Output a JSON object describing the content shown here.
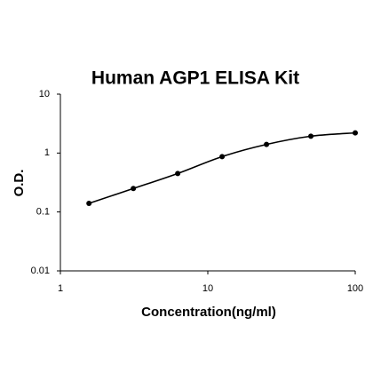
{
  "chart_data": {
    "type": "scatter",
    "title": "Human AGP1 ELISA Kit",
    "x_label": "Concentration(ng/ml)",
    "y_label": "O.D.",
    "x": [
      1.5625,
      3.125,
      6.25,
      12.5,
      25,
      50,
      100
    ],
    "values": [
      0.14,
      0.25,
      0.45,
      0.87,
      1.4,
      1.93,
      2.2
    ],
    "color": "#000000",
    "fit_line": true,
    "x_scale": "log",
    "y_scale": "log",
    "xlim": [
      1,
      100
    ],
    "xticks": [
      1,
      10,
      100
    ],
    "ylim": [
      0.01,
      10
    ],
    "yticks": [
      0.01,
      0.1,
      1,
      10
    ]
  }
}
